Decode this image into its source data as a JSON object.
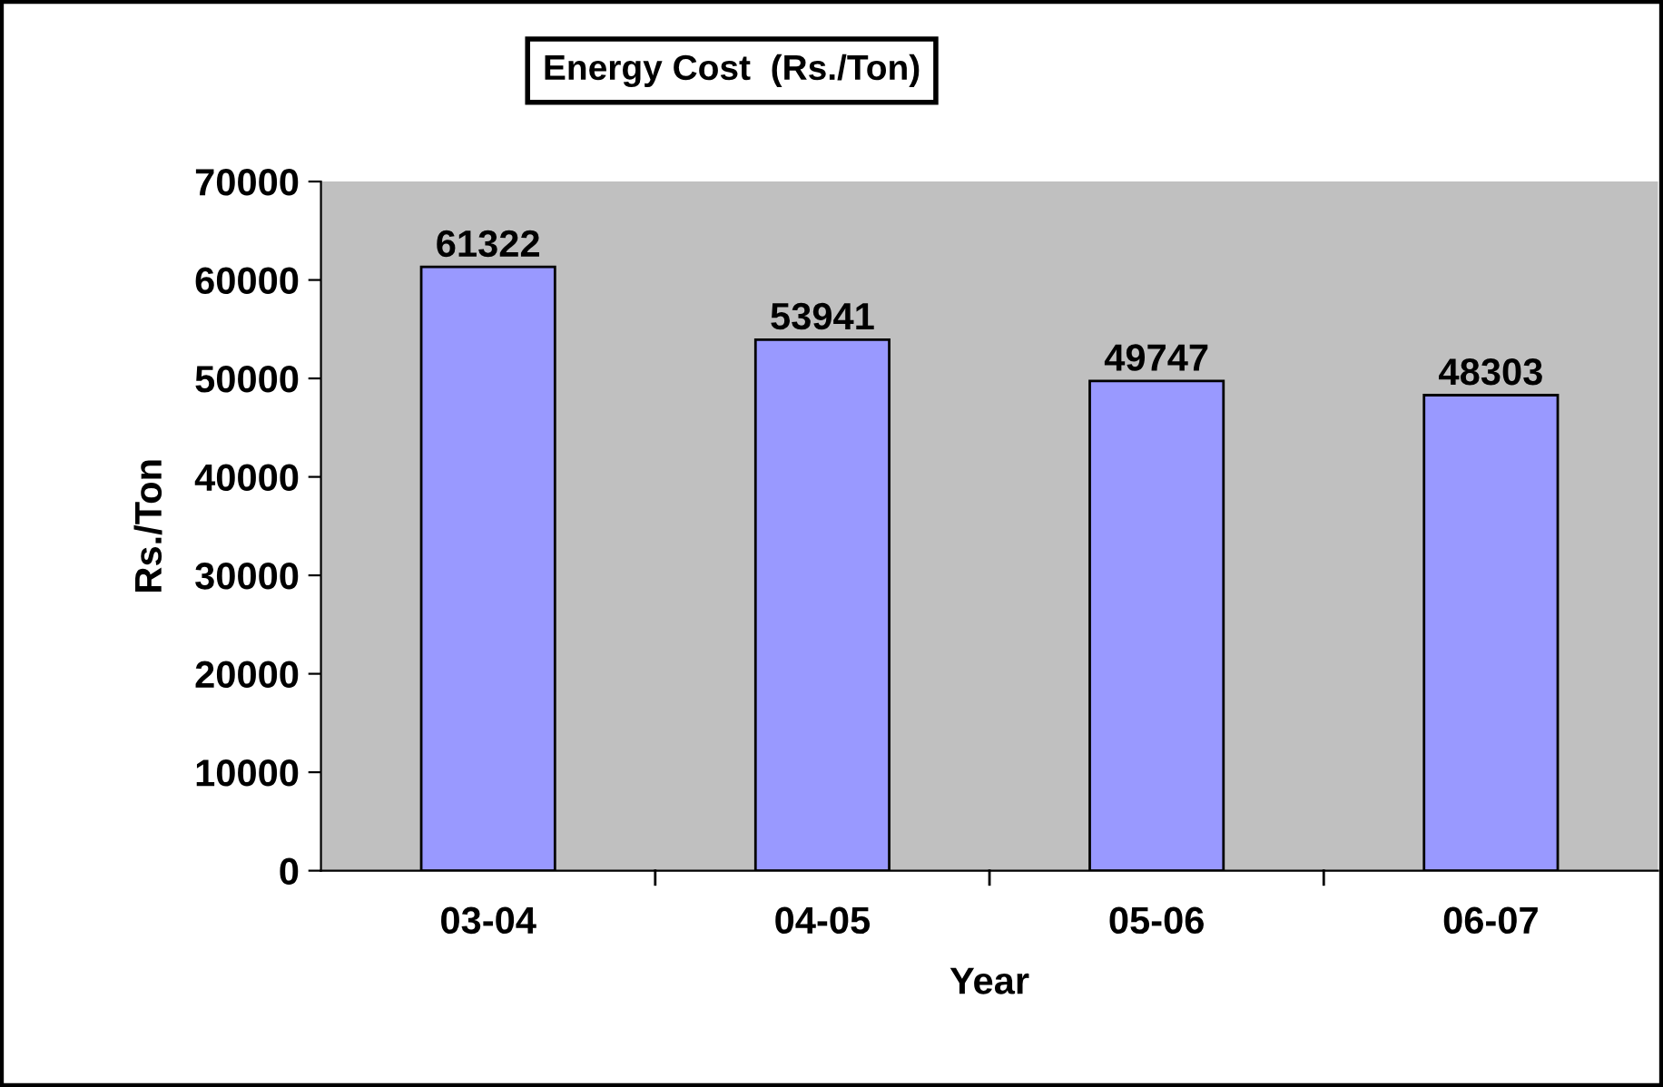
{
  "chart_data": {
    "type": "bar",
    "title": "Energy Cost  (Rs./Ton)",
    "xlabel": "Year",
    "ylabel": "Rs./Ton",
    "categories": [
      "03-04",
      "04-05",
      "05-06",
      "06-07"
    ],
    "values": [
      61322,
      53941,
      49747,
      48303
    ],
    "color": "#9999ff",
    "ylim": [
      0,
      70000
    ],
    "yticks": [
      0,
      10000,
      20000,
      30000,
      40000,
      50000,
      60000,
      70000
    ],
    "grid": false,
    "legend": false,
    "data_labels": true
  }
}
